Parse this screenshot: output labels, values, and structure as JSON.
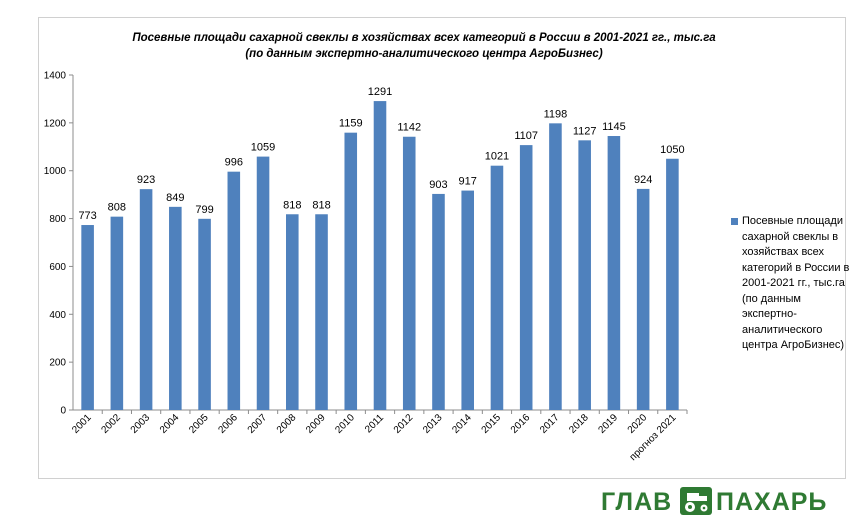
{
  "chart_data": {
    "type": "bar",
    "title_line1": "Посевные площади сахарной свеклы в хозяйствах всех категорий в России в 2001-2021 гг., тыс.га",
    "title_line2": "(по данным экспертно-аналитического центра АгроБизнес)",
    "categories": [
      "2001",
      "2002",
      "2003",
      "2004",
      "2005",
      "2006",
      "2007",
      "2008",
      "2009",
      "2010",
      "2011",
      "2012",
      "2013",
      "2014",
      "2015",
      "2016",
      "2017",
      "2018",
      "2019",
      "2020",
      "прогноз 2021"
    ],
    "series": [
      {
        "name": "Посевные площади сахарной свеклы в хозяйствах всех категорий в России в 2001-2021 гг., тыс.га (по данным экспертно-аналитического центра АгроБизнес)",
        "values": [
          773,
          808,
          923,
          849,
          799,
          996,
          1059,
          818,
          818,
          1159,
          1291,
          1142,
          903,
          917,
          1021,
          1107,
          1198,
          1127,
          1145,
          924,
          1050
        ]
      }
    ],
    "ylim": [
      0,
      1400
    ],
    "yticks": [
      0,
      200,
      400,
      600,
      800,
      1000,
      1200,
      1400
    ],
    "grid": false,
    "legend_position": "right",
    "bar_color": "#4f81bd"
  },
  "logo": {
    "left_word": "ГЛАВ",
    "right_word": "ПАХАРЬ",
    "color": "#2f7a33"
  }
}
